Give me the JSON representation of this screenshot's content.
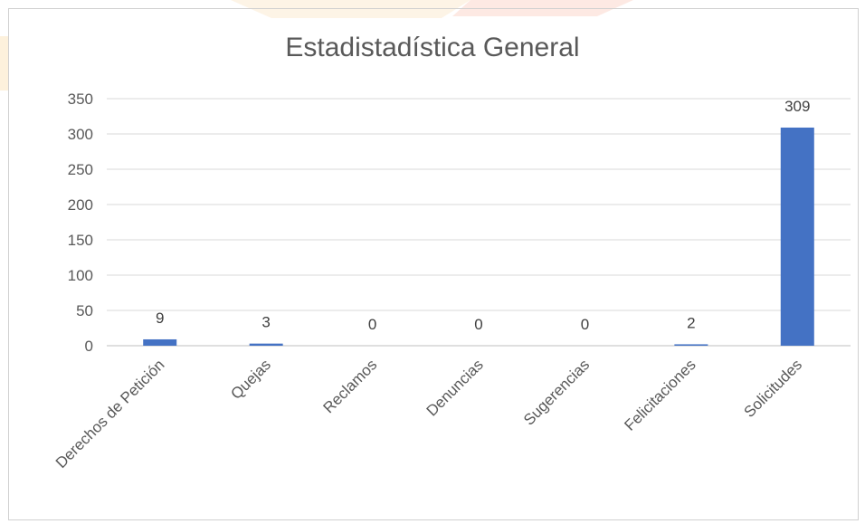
{
  "chart_data": {
    "type": "bar",
    "title": "Estadistadística General",
    "xlabel": "",
    "ylabel": "",
    "categories": [
      "Derechos de Petición",
      "Quejas",
      "Reclamos",
      "Denuncias",
      "Sugerencias",
      "Felicitaciones",
      "Solicitudes"
    ],
    "values": [
      9,
      3,
      0,
      0,
      0,
      2,
      309
    ],
    "data_labels": [
      "9",
      "3",
      "0",
      "0",
      "0",
      "2",
      "309"
    ],
    "yticks": [
      "0",
      "50",
      "100",
      "150",
      "200",
      "250",
      "300",
      "350"
    ],
    "ylim": [
      0,
      350
    ],
    "grid": true,
    "legend": "none",
    "bar_color": "#4472c4"
  },
  "colors": {
    "gridline": "#d9d9d9",
    "text": "#595959",
    "axis": "#bfbfbf"
  }
}
